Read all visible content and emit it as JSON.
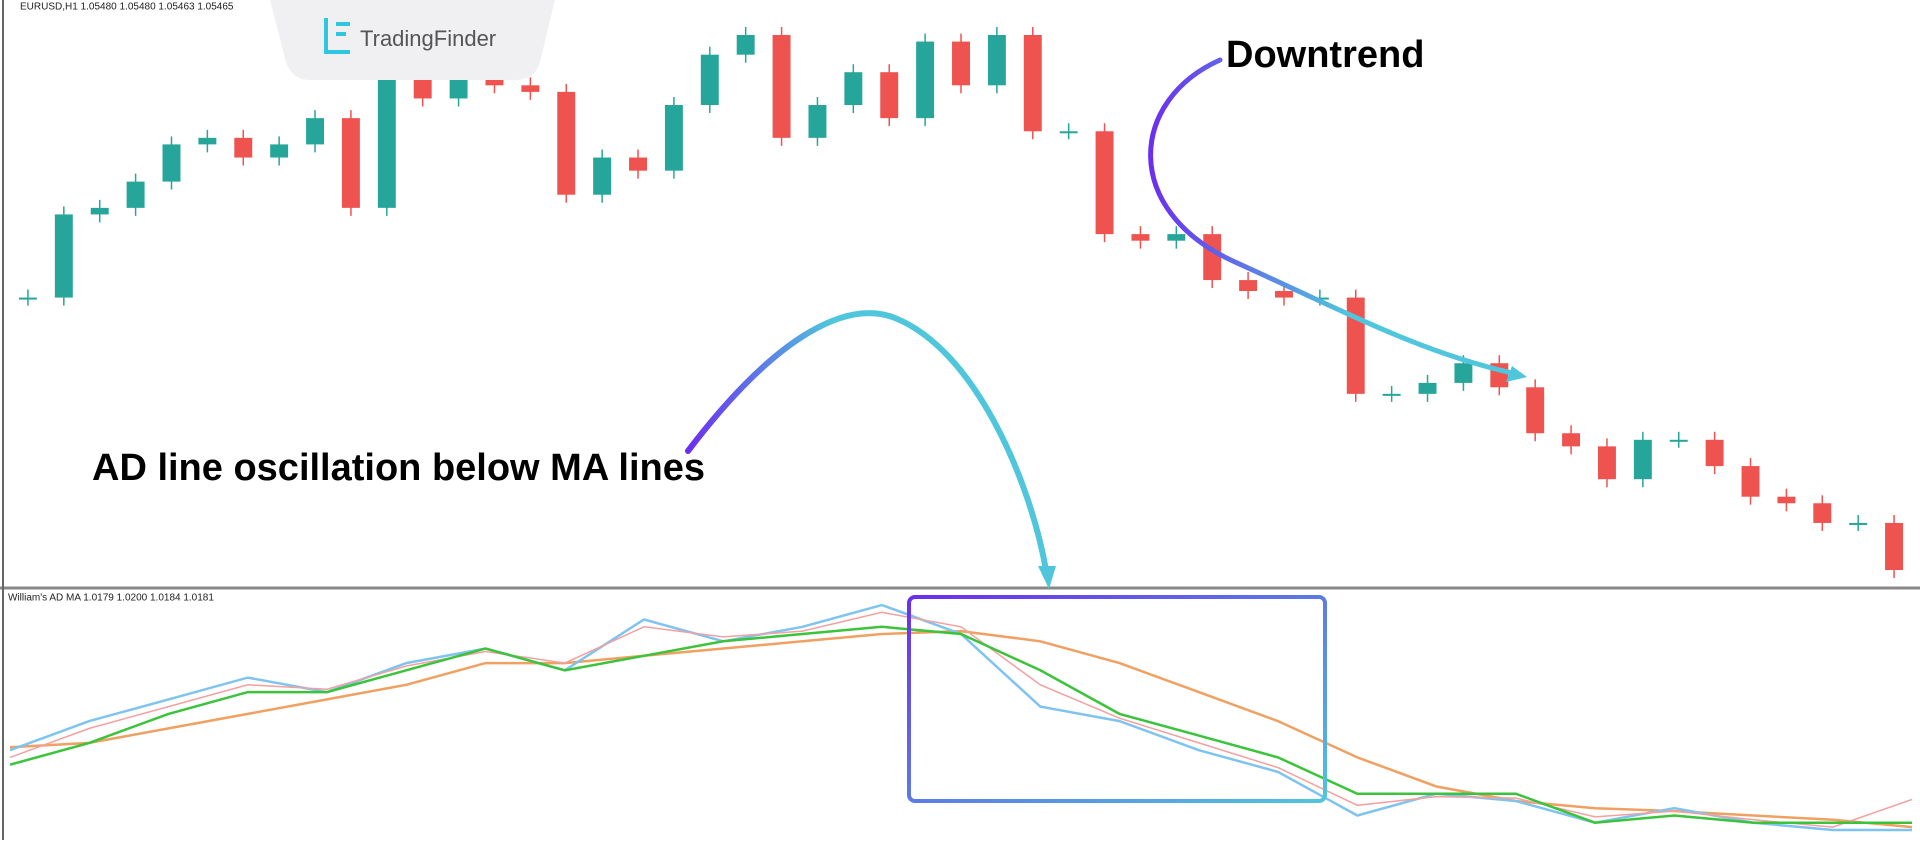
{
  "header": {
    "logo": "TradingFinder"
  },
  "annotations": {
    "downtrend": "Downtrend",
    "ad_line": "AD line oscillation below MA lines"
  },
  "chart_data": [
    {
      "type": "candlestick",
      "title": "EURUSD,H1 1.05480 1.05480 1.05463 1.05465",
      "values": [
        1.0671,
        1.0709,
        1.0712,
        1.0724,
        1.0741,
        1.0744,
        1.0735,
        1.0741,
        1.0753,
        1.0712,
        1.0774,
        1.0762,
        1.0771,
        1.0768,
        1.0765,
        1.0718,
        1.0735,
        1.0729,
        1.0759,
        1.0782,
        1.0791,
        1.0744,
        1.0759,
        1.0774,
        1.0753,
        1.0788,
        1.0768,
        1.0791,
        1.0747,
        1.0747,
        1.07,
        1.0697,
        1.07,
        1.0679,
        1.0674,
        1.0671,
        1.0671,
        1.0627,
        1.0627,
        1.0632,
        1.0641,
        1.063,
        1.0609,
        1.0603,
        1.0588,
        1.0606,
        1.0606,
        1.0594,
        1.058,
        1.0577,
        1.0568,
        1.0568,
        1.05465
      ],
      "up_color": "#26a69a",
      "down_color": "#ef5350"
    },
    {
      "type": "line",
      "title": "William's AD MA 1.0179 1.0200 1.0184 1.0181",
      "series": [
        {
          "color": "#f0a060",
          "values": [
            1.0236,
            1.0239,
            1.0249,
            1.0259,
            1.0269,
            1.0279,
            1.0294,
            1.0294,
            1.0299,
            1.0304,
            1.0309,
            1.0314,
            1.0316,
            1.0309,
            1.0294,
            1.0274,
            1.0254,
            1.0229,
            1.0209,
            1.0199,
            1.0194,
            1.0192,
            1.0189,
            1.0186,
            1.0181
          ]
        },
        {
          "color": "#7fc4ef",
          "values": [
            1.0234,
            1.0254,
            1.0269,
            1.0284,
            1.0274,
            1.0294,
            1.0304,
            1.0289,
            1.0324,
            1.0309,
            1.0319,
            1.0334,
            1.0314,
            1.0264,
            1.0254,
            1.0234,
            1.0219,
            1.0189,
            1.0204,
            1.0199,
            1.0184,
            1.0194,
            1.0184,
            1.0179,
            1.0179
          ]
        },
        {
          "color": "#f4a0a0",
          "values": [
            1.0229,
            1.0249,
            1.0264,
            1.0279,
            1.0276,
            1.0292,
            1.0302,
            1.0294,
            1.0319,
            1.0312,
            1.0316,
            1.0329,
            1.0319,
            1.0279,
            1.0256,
            1.0239,
            1.0222,
            1.0196,
            1.0202,
            1.0201,
            1.0188,
            1.0192,
            1.0186,
            1.0181,
            1.02
          ]
        },
        {
          "color": "#3cc33c",
          "values": [
            1.0224,
            1.0239,
            1.0259,
            1.0274,
            1.0274,
            1.0289,
            1.0304,
            1.0289,
            1.0299,
            1.0309,
            1.0314,
            1.0319,
            1.0314,
            1.0289,
            1.0259,
            1.0244,
            1.0229,
            1.0204,
            1.0204,
            1.0204,
            1.0184,
            1.0189,
            1.0184,
            1.0184,
            1.0184
          ]
        }
      ]
    }
  ]
}
